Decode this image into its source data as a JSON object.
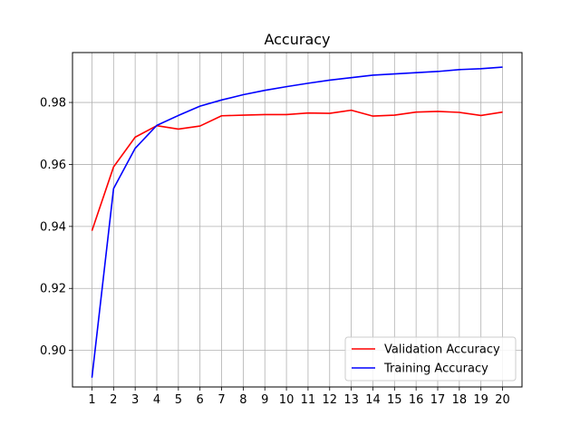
{
  "chart_data": {
    "type": "line",
    "title": "Accuracy",
    "xlabel": "",
    "ylabel": "",
    "x": [
      1,
      2,
      3,
      4,
      5,
      6,
      7,
      8,
      9,
      10,
      11,
      12,
      13,
      14,
      15,
      16,
      17,
      18,
      19,
      20
    ],
    "xlim": [
      0.1,
      20.9
    ],
    "ylim": [
      0.8882,
      0.9961
    ],
    "yticks": [
      0.9,
      0.92,
      0.94,
      0.96,
      0.98
    ],
    "ytick_labels": [
      "0.90",
      "0.92",
      "0.94",
      "0.96",
      "0.98"
    ],
    "grid": true,
    "legend_position": "bottom-right",
    "series": [
      {
        "name": "Validation Accuracy",
        "color": "#ff0000",
        "values": [
          0.9386,
          0.9592,
          0.9688,
          0.9725,
          0.9714,
          0.9724,
          0.9757,
          0.9759,
          0.9761,
          0.9761,
          0.9766,
          0.9765,
          0.9775,
          0.9756,
          0.9759,
          0.9769,
          0.9771,
          0.9768,
          0.9758,
          0.9769
        ]
      },
      {
        "name": "Training Accuracy",
        "color": "#0000ff",
        "values": [
          0.8912,
          0.9522,
          0.9652,
          0.9726,
          0.9758,
          0.9788,
          0.9808,
          0.9825,
          0.9839,
          0.9851,
          0.9862,
          0.9872,
          0.988,
          0.9888,
          0.9892,
          0.9896,
          0.99,
          0.9906,
          0.9909,
          0.9914
        ]
      }
    ]
  }
}
